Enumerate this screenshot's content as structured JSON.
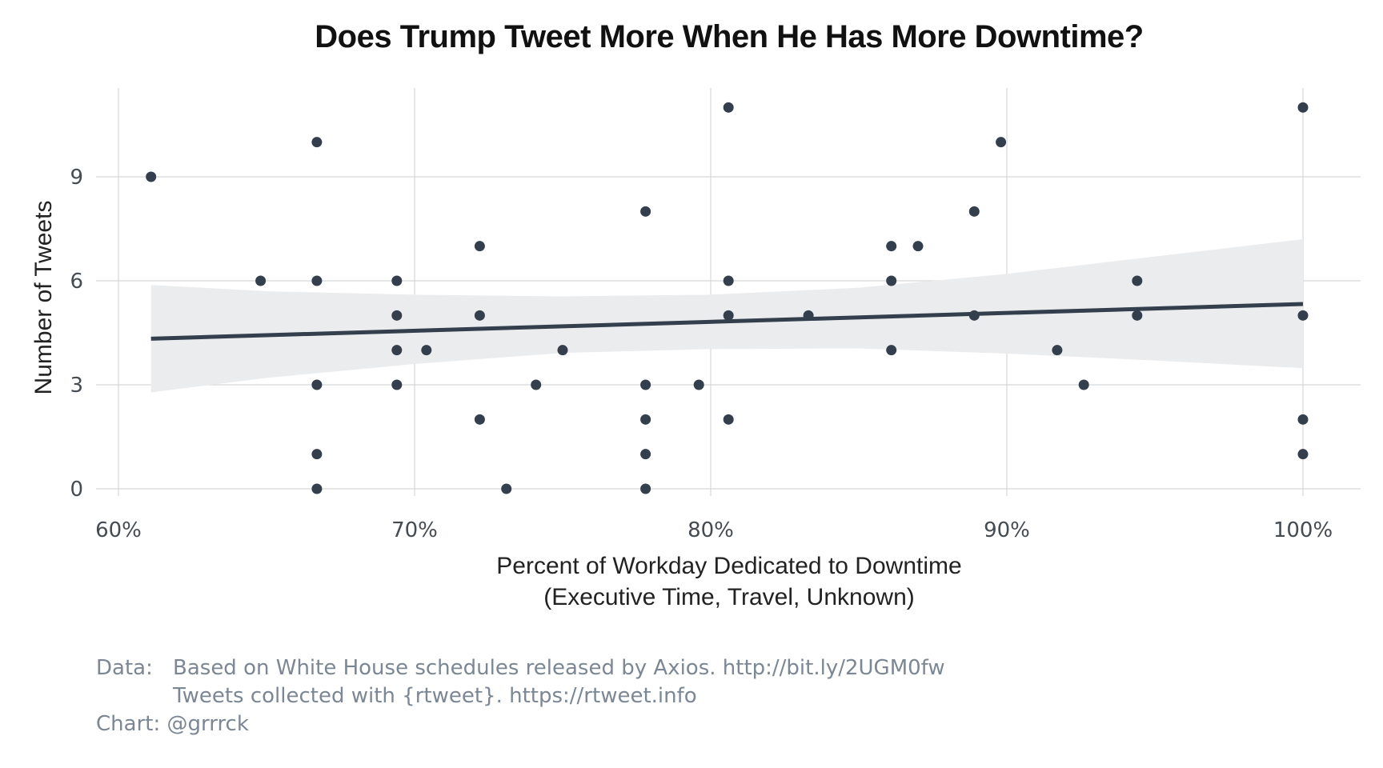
{
  "chart_data": {
    "type": "scatter",
    "title": "Does Trump Tweet More When He Has More Downtime?",
    "xlabel": [
      "Percent of Workday Dedicated to Downtime",
      "(Executive Time, Travel, Unknown)"
    ],
    "ylabel": "Number of Tweets",
    "xlim": [
      0.59,
      1.02
    ],
    "ylim": [
      -0.3,
      11.5
    ],
    "x_ticks": [
      0.6,
      0.7,
      0.8,
      0.9,
      1.0
    ],
    "x_tick_labels": [
      "60%",
      "70%",
      "80%",
      "90%",
      "100%"
    ],
    "y_ticks": [
      0,
      3,
      6,
      9
    ],
    "y_tick_labels": [
      "0",
      "3",
      "6",
      "9"
    ],
    "grid": true,
    "points": [
      {
        "x": 0.611,
        "y": 9
      },
      {
        "x": 0.648,
        "y": 6
      },
      {
        "x": 0.667,
        "y": 10
      },
      {
        "x": 0.667,
        "y": 6
      },
      {
        "x": 0.667,
        "y": 3
      },
      {
        "x": 0.667,
        "y": 1
      },
      {
        "x": 0.667,
        "y": 0
      },
      {
        "x": 0.694,
        "y": 6
      },
      {
        "x": 0.694,
        "y": 5
      },
      {
        "x": 0.694,
        "y": 4
      },
      {
        "x": 0.694,
        "y": 3
      },
      {
        "x": 0.704,
        "y": 4
      },
      {
        "x": 0.722,
        "y": 7
      },
      {
        "x": 0.722,
        "y": 5
      },
      {
        "x": 0.722,
        "y": 2
      },
      {
        "x": 0.731,
        "y": 0
      },
      {
        "x": 0.741,
        "y": 3
      },
      {
        "x": 0.75,
        "y": 4
      },
      {
        "x": 0.778,
        "y": 8
      },
      {
        "x": 0.778,
        "y": 3
      },
      {
        "x": 0.778,
        "y": 2
      },
      {
        "x": 0.778,
        "y": 1
      },
      {
        "x": 0.778,
        "y": 0
      },
      {
        "x": 0.796,
        "y": 3
      },
      {
        "x": 0.806,
        "y": 11
      },
      {
        "x": 0.806,
        "y": 6
      },
      {
        "x": 0.806,
        "y": 5
      },
      {
        "x": 0.806,
        "y": 2
      },
      {
        "x": 0.833,
        "y": 5
      },
      {
        "x": 0.861,
        "y": 7
      },
      {
        "x": 0.861,
        "y": 6
      },
      {
        "x": 0.861,
        "y": 4
      },
      {
        "x": 0.87,
        "y": 7
      },
      {
        "x": 0.889,
        "y": 8
      },
      {
        "x": 0.889,
        "y": 5
      },
      {
        "x": 0.898,
        "y": 10
      },
      {
        "x": 0.917,
        "y": 4
      },
      {
        "x": 0.926,
        "y": 3
      },
      {
        "x": 0.944,
        "y": 6
      },
      {
        "x": 0.944,
        "y": 5
      },
      {
        "x": 1.0,
        "y": 11
      },
      {
        "x": 1.0,
        "y": 5
      },
      {
        "x": 1.0,
        "y": 2
      },
      {
        "x": 1.0,
        "y": 1
      }
    ],
    "trend_line": {
      "x": [
        0.611,
        1.0
      ],
      "y": [
        4.33,
        5.33
      ]
    },
    "confidence_band": {
      "x": [
        0.611,
        0.65,
        0.7,
        0.75,
        0.8,
        0.85,
        0.9,
        0.95,
        1.0
      ],
      "upper": [
        5.88,
        5.7,
        5.6,
        5.55,
        5.6,
        5.8,
        6.2,
        6.7,
        7.2
      ],
      "lower": [
        2.78,
        3.2,
        3.6,
        3.92,
        4.03,
        4.05,
        3.9,
        3.7,
        3.48
      ]
    },
    "colors": {
      "point": "#333f4c",
      "line": "#333f4c",
      "band": "#ebecee",
      "grid": "#d5d7d9"
    }
  },
  "caption": {
    "data_key": "Data:",
    "data_line1": "Based on White House schedules released by Axios. http://bit.ly/2UGM0fw",
    "data_line2": "Tweets collected with {rtweet}. https://rtweet.info",
    "chart_line": "Chart: @grrrck"
  }
}
